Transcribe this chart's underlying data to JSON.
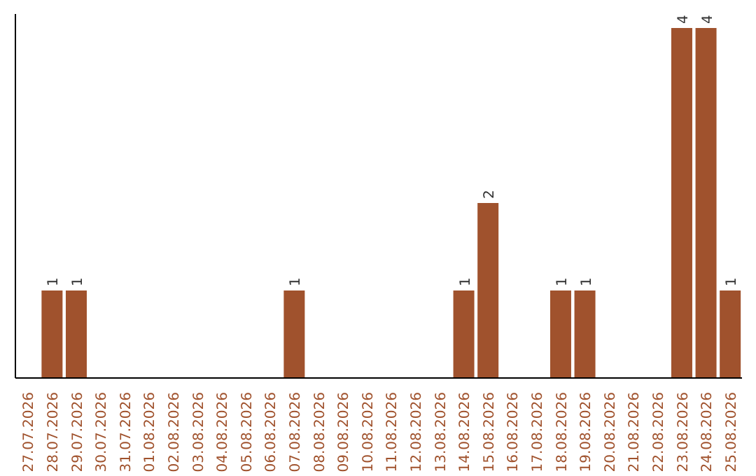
{
  "chart_data": {
    "type": "bar",
    "categories": [
      "27.07.2026",
      "28.07.2026",
      "29.07.2026",
      "30.07.2026",
      "31.07.2026",
      "01.08.2026",
      "02.08.2026",
      "03.08.2026",
      "04.08.2026",
      "05.08.2026",
      "06.08.2026",
      "07.08.2026",
      "08.08.2026",
      "09.08.2026",
      "10.08.2026",
      "11.08.2026",
      "12.08.2026",
      "13.08.2026",
      "14.08.2026",
      "15.08.2026",
      "16.08.2026",
      "17.08.2026",
      "18.08.2026",
      "19.08.2026",
      "20.08.2026",
      "21.08.2026",
      "22.08.2026",
      "23.08.2026",
      "24.08.2026",
      "25.08.2026"
    ],
    "values": [
      0,
      1,
      1,
      0,
      0,
      0,
      0,
      0,
      0,
      0,
      0,
      1,
      0,
      0,
      0,
      0,
      0,
      0,
      1,
      2,
      0,
      0,
      1,
      1,
      0,
      0,
      0,
      4,
      4,
      1
    ],
    "value_labels": [
      null,
      "1",
      "1",
      null,
      null,
      null,
      null,
      null,
      null,
      null,
      null,
      "1",
      null,
      null,
      null,
      null,
      null,
      null,
      "1",
      "2",
      null,
      null,
      "1",
      "1",
      null,
      null,
      null,
      "4",
      "4",
      "1"
    ],
    "color": "#a0522d",
    "tick_labels": "x"
  }
}
